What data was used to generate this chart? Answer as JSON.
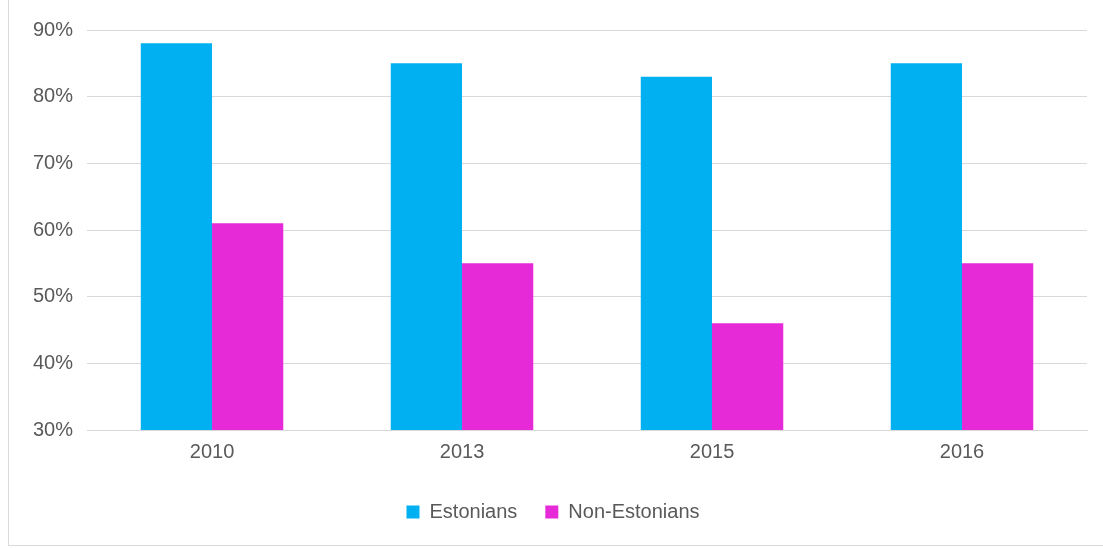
{
  "chart_data": {
    "type": "bar",
    "categories": [
      "2010",
      "2013",
      "2015",
      "2016"
    ],
    "series": [
      {
        "name": "Estonians",
        "color": "#00b0f0",
        "values": [
          88,
          85,
          83,
          85
        ]
      },
      {
        "name": "Non-Estonians",
        "color": "#e62ad8",
        "values": [
          61,
          55,
          46,
          55
        ]
      }
    ],
    "ylim": [
      30,
      90
    ],
    "yticks": [
      {
        "value": 30,
        "label": "30%"
      },
      {
        "value": 40,
        "label": "40%"
      },
      {
        "value": 50,
        "label": "50%"
      },
      {
        "value": 60,
        "label": "60%"
      },
      {
        "value": 70,
        "label": "70%"
      },
      {
        "value": 80,
        "label": "80%"
      },
      {
        "value": 90,
        "label": "90%"
      }
    ],
    "grid": "y",
    "legend": "bottom"
  }
}
